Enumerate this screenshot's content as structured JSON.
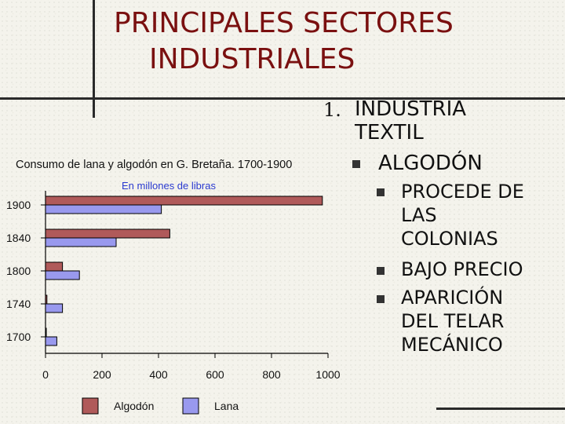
{
  "slide": {
    "title_line1": "PRINCIPALES SECTORES",
    "title_line2": "INDUSTRIALES"
  },
  "outline": {
    "number": "1.",
    "level1_line1": "INDUSTRIA",
    "level1_line2": "TEXTIL",
    "level2": "ALGODÓN",
    "level3": [
      {
        "lines": [
          "PROCEDE DE",
          "LAS",
          "COLONIAS"
        ]
      },
      {
        "lines": [
          "BAJO PRECIO"
        ]
      },
      {
        "lines": [
          "APARICIÓN",
          "DEL TELAR",
          "MECÁNICO"
        ]
      }
    ]
  },
  "chart_data": {
    "type": "bar",
    "orientation": "horizontal",
    "title": "Consumo de lana y algodón en G. Bretaña. 1700-1900",
    "subtitle": "En millones de libras",
    "categories": [
      "1900",
      "1840",
      "1800",
      "1740",
      "1700"
    ],
    "series": [
      {
        "name": "Algodón",
        "color": "#b05a5a",
        "values": [
          980,
          440,
          60,
          5,
          2
        ]
      },
      {
        "name": "Lana",
        "color": "#9999ee",
        "values": [
          410,
          250,
          120,
          60,
          40
        ]
      }
    ],
    "xlim": [
      0,
      1000
    ],
    "x_ticks": [
      "0",
      "200",
      "400",
      "600",
      "800",
      "1000"
    ],
    "legend_position": "bottom",
    "grid": false
  }
}
